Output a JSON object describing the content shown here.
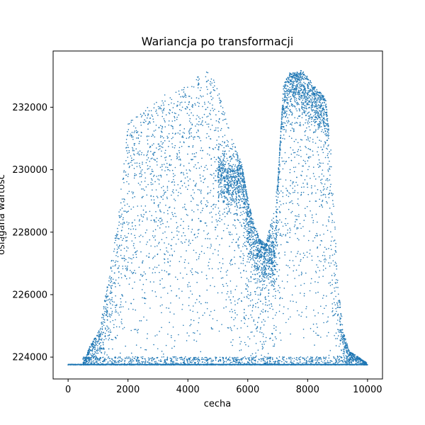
{
  "chart_data": {
    "type": "scatter",
    "title": "Wariancja po transformacji",
    "xlabel": "cecha",
    "ylabel": "osiągana wartość",
    "xlim": [
      -500,
      10500
    ],
    "ylim": [
      223300,
      233800
    ],
    "x_ticks": [
      0,
      2000,
      4000,
      6000,
      8000,
      10000
    ],
    "x_tick_labels": [
      "0",
      "2000",
      "4000",
      "6000",
      "8000",
      "10000"
    ],
    "y_ticks": [
      224000,
      226000,
      228000,
      230000,
      232000
    ],
    "y_tick_labels": [
      "224000",
      "226000",
      "228000",
      "230000",
      "232000"
    ],
    "grid": false,
    "marker_color": "#1f77b4",
    "series": [
      {
        "baseline": 223760,
        "x_range": [
          0,
          10000
        ],
        "upper_envelope": {
          "x": [
            0,
            500,
            700,
            1000,
            1300,
            1600,
            2000,
            2400,
            2800,
            3200,
            3600,
            4000,
            4400,
            4600,
            4800,
            5000,
            5200,
            5500,
            5800,
            6000,
            6200,
            6400,
            6600,
            6800,
            7000,
            7200,
            7400,
            7600,
            7800,
            8000,
            8200,
            8400,
            8600,
            8800,
            9000,
            9200,
            9400,
            10000
          ],
          "y": [
            223800,
            223800,
            224300,
            224800,
            226200,
            228000,
            231500,
            231800,
            232100,
            232400,
            232500,
            232700,
            233100,
            233200,
            233100,
            232600,
            232000,
            231000,
            230200,
            229100,
            228300,
            227800,
            227600,
            228400,
            229600,
            232800,
            233100,
            233100,
            233200,
            233000,
            232700,
            232500,
            232300,
            230400,
            226500,
            224800,
            224200,
            223800
          ]
        },
        "dense_core": {
          "x": [
            5000,
            5400,
            5800,
            6100,
            6300,
            6500,
            6700,
            6900,
            7100,
            7300,
            7500,
            7700,
            7900,
            8100,
            8300,
            8500,
            8700
          ],
          "y": [
            230000,
            229500,
            229800,
            228000,
            227600,
            227300,
            227500,
            227000,
            231800,
            232400,
            232700,
            232800,
            232500,
            232300,
            232200,
            232000,
            231500
          ]
        }
      }
    ]
  }
}
